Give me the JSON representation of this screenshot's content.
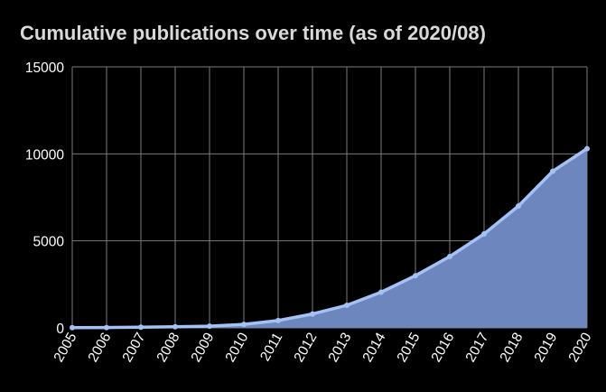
{
  "chart_data": {
    "type": "area",
    "title": "Cumulative publications over time (as of 2020/08)",
    "xlabel": "",
    "ylabel": "",
    "x": [
      "2005",
      "2006",
      "2007",
      "2008",
      "2009",
      "2010",
      "2011",
      "2012",
      "2013",
      "2014",
      "2015",
      "2016",
      "2017",
      "2018",
      "2019",
      "2020"
    ],
    "y_ticks": [
      "0",
      "5000",
      "10000",
      "15000"
    ],
    "ylim": [
      0,
      15000
    ],
    "grid": true,
    "legend": "none",
    "series": [
      {
        "values": [
          10,
          20,
          40,
          60,
          100,
          200,
          420,
          800,
          1300,
          2050,
          3000,
          4100,
          5400,
          7000,
          9000,
          10300
        ],
        "line_color": "#a4c2f4",
        "fill_color": "#6d86bd"
      }
    ],
    "colors": {
      "background": "#000000",
      "grid": "#7a7a7a",
      "text": "#ffffff",
      "title": "#d9d9d9"
    }
  }
}
